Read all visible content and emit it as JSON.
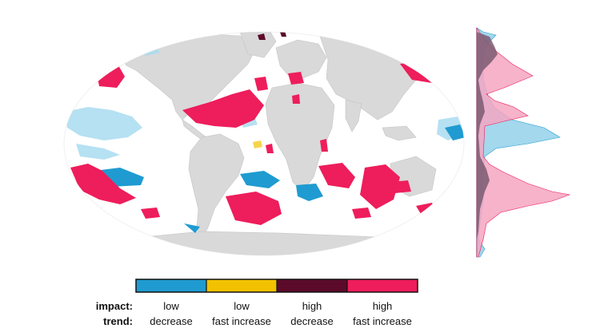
{
  "colors": {
    "ocean_bg": "#ffffff",
    "land": "#d9d9d9",
    "land_border": "#bdbdbd",
    "low_decrease": "#1f9bd1",
    "low_fast_increase": "#f2c200",
    "high_decrease": "#5c0a2a",
    "high_fast_increase": "#ee1d5b",
    "light_low_decrease": "#a9dcf0",
    "profile_pink": "#f4a6c1",
    "profile_blue": "#7cc7e6",
    "profile_dark": "#7a5a72"
  },
  "legend": {
    "row_labels": {
      "impact": "impact:",
      "trend": "trend:"
    },
    "categories": [
      {
        "key": "low_decrease",
        "impact": "low",
        "trend": "decrease",
        "color": "#1f9bd1"
      },
      {
        "key": "low_fast_increase",
        "impact": "low",
        "trend": "fast increase",
        "color": "#f2c200"
      },
      {
        "key": "high_decrease",
        "impact": "high",
        "trend": "decrease",
        "color": "#5c0a2a"
      },
      {
        "key": "high_fast_increase",
        "impact": "high",
        "trend": "fast increase",
        "color": "#ee1d5b"
      }
    ]
  }
}
